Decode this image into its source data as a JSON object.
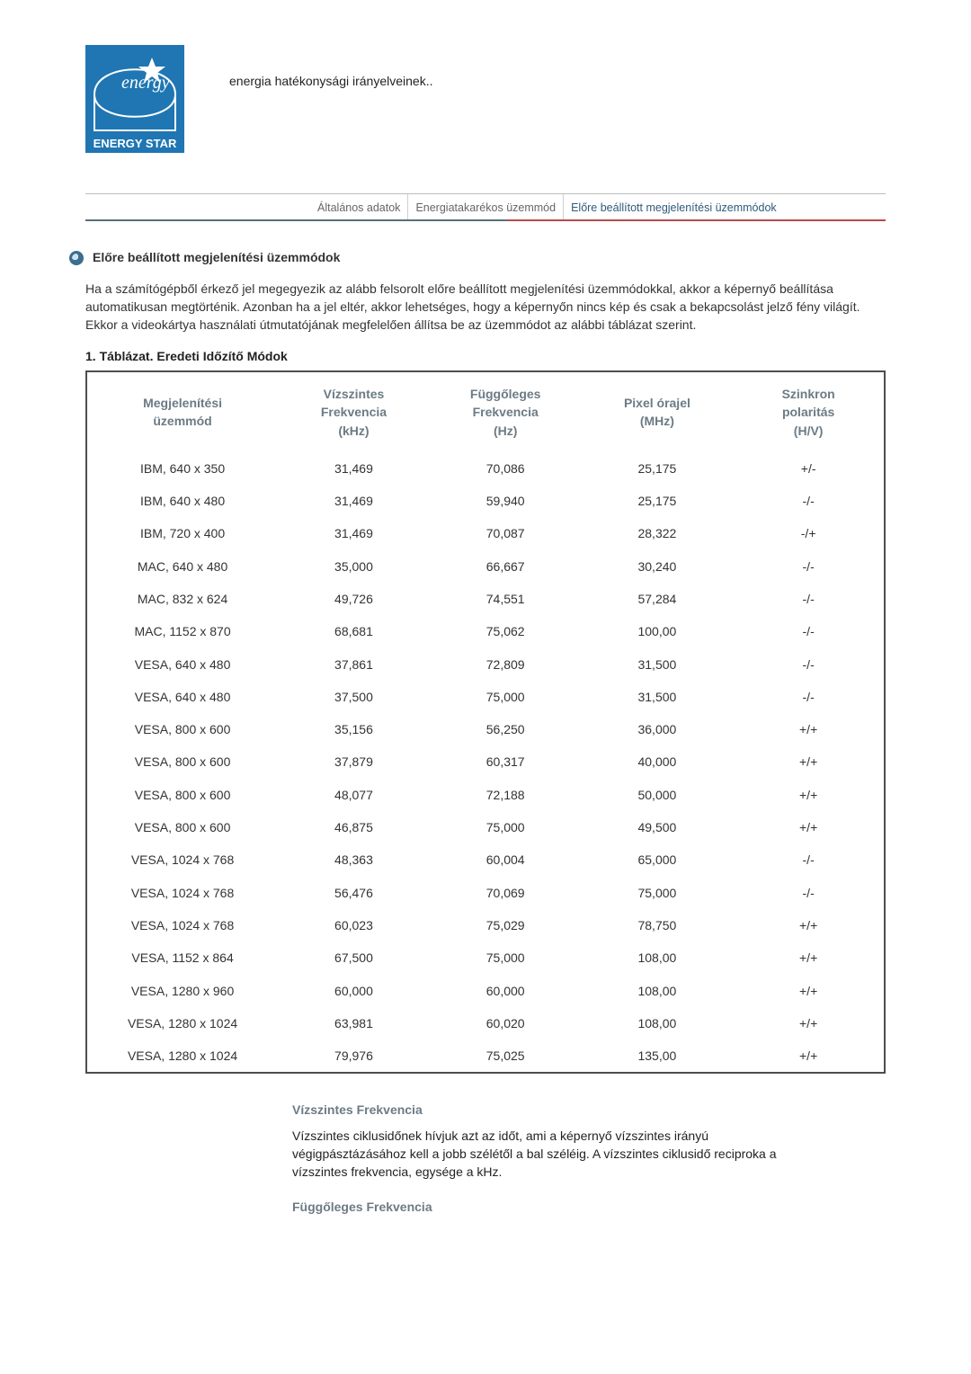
{
  "header_text": "energia hatékonysági irányelveinek..",
  "logo": {
    "brand_top": "energy",
    "brand_bottom": "ENERGY STAR",
    "bg_color": "#1f76b3",
    "star_color": "#ffffff"
  },
  "tabs": {
    "items": [
      "Általános adatok",
      "Energiatakarékos üzemmód",
      "Előre beállított megjelenítési üzemmódok"
    ],
    "active_index": 2,
    "border_color": "#5a6e7a",
    "accent_color": "#b74a4a"
  },
  "section_title": "Előre beállított megjelenítési üzemmódok",
  "intro": "Ha a számítógépből érkező jel megegyezik az alább felsorolt előre beállított megjelenítési üzemmódokkal, akkor a képernyő beállítása automatikusan megtörténik. Azonban ha a jel eltér, akkor lehetséges, hogy a képernyőn nincs kép és csak a bekapcsolást jelző fény világít. Ekkor a videokártya használati útmutatójának megfelelően állítsa be az üzemmódot az alábbi táblázat szerint.",
  "table": {
    "caption": "1. Táblázat. Eredeti Időzítő Módok",
    "columns": [
      "Megjelenítési üzemmód",
      "Vízszintes Frekvencia (kHz)",
      "Függőleges Frekvencia (Hz)",
      "Pixel órajel (MHz)",
      "Szinkron polaritás (H/V)"
    ],
    "col_widths_pct": [
      24,
      19,
      19,
      19,
      19
    ],
    "header_color": "#6c7b85",
    "border_color": "#4d4d4d",
    "rows": [
      [
        "IBM, 640 x 350",
        "31,469",
        "70,086",
        "25,175",
        "+/-"
      ],
      [
        "IBM, 640 x 480",
        "31,469",
        "59,940",
        "25,175",
        "-/-"
      ],
      [
        "IBM, 720 x 400",
        "31,469",
        "70,087",
        "28,322",
        "-/+"
      ],
      [
        "MAC, 640 x 480",
        "35,000",
        "66,667",
        "30,240",
        "-/-"
      ],
      [
        "MAC, 832 x 624",
        "49,726",
        "74,551",
        "57,284",
        "-/-"
      ],
      [
        "MAC, 1152 x 870",
        "68,681",
        "75,062",
        "100,00",
        "-/-"
      ],
      [
        "VESA, 640 x 480",
        "37,861",
        "72,809",
        "31,500",
        "-/-"
      ],
      [
        "VESA, 640 x 480",
        "37,500",
        "75,000",
        "31,500",
        "-/-"
      ],
      [
        "VESA, 800 x 600",
        "35,156",
        "56,250",
        "36,000",
        "+/+"
      ],
      [
        "VESA, 800 x 600",
        "37,879",
        "60,317",
        "40,000",
        "+/+"
      ],
      [
        "VESA, 800 x 600",
        "48,077",
        "72,188",
        "50,000",
        "+/+"
      ],
      [
        "VESA, 800 x 600",
        "46,875",
        "75,000",
        "49,500",
        "+/+"
      ],
      [
        "VESA, 1024 x 768",
        "48,363",
        "60,004",
        "65,000",
        "-/-"
      ],
      [
        "VESA, 1024 x 768",
        "56,476",
        "70,069",
        "75,000",
        "-/-"
      ],
      [
        "VESA, 1024 x 768",
        "60,023",
        "75,029",
        "78,750",
        "+/+"
      ],
      [
        "VESA, 1152 x 864",
        "67,500",
        "75,000",
        "108,00",
        "+/+"
      ],
      [
        "VESA, 1280 x 960",
        "60,000",
        "60,000",
        "108,00",
        "+/+"
      ],
      [
        "VESA, 1280 x 1024",
        "63,981",
        "60,020",
        "108,00",
        "+/+"
      ],
      [
        "VESA, 1280 x 1024",
        "79,976",
        "75,025",
        "135,00",
        "+/+"
      ]
    ]
  },
  "defs": {
    "hfreq_title": "Vízszintes Frekvencia",
    "hfreq_body": "Vízszintes ciklusidőnek hívjuk azt az időt, ami a képernyő vízszintes irányú végigpásztázásához kell a jobb szélétől a bal széléig. A vízszintes ciklusidő reciproka a vízszintes frekvencia, egysége a kHz.",
    "vfreq_title": "Függőleges Frekvencia"
  }
}
